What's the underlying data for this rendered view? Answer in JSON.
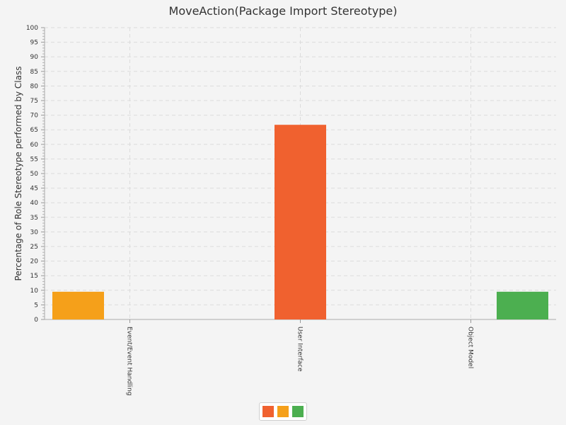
{
  "chart_data": {
    "type": "bar",
    "title": "MoveAction(Package Import Stereotype)",
    "xlabel": "",
    "ylabel": "Percentage of Role Stereotype performed by Class",
    "categories": [
      "Event/Event Handling",
      "User Interface",
      "Object Model"
    ],
    "series": [
      {
        "values": [
          9.5,
          0,
          0
        ],
        "color": "#f5a01a"
      },
      {
        "values": [
          0,
          66.7,
          0
        ],
        "color": "#f0612f"
      },
      {
        "values": [
          0,
          0,
          9.5
        ],
        "color": "#4caf50"
      }
    ],
    "ylim": [
      0,
      100
    ],
    "yticks": [
      0,
      5,
      10,
      15,
      20,
      25,
      30,
      35,
      40,
      45,
      50,
      55,
      60,
      65,
      70,
      75,
      80,
      85,
      90,
      95,
      100
    ],
    "grid": true,
    "legend": {
      "position": "bottom-center",
      "entries": [
        {
          "color": "#f0612f"
        },
        {
          "color": "#f5a01a"
        },
        {
          "color": "#4caf50"
        }
      ]
    }
  }
}
